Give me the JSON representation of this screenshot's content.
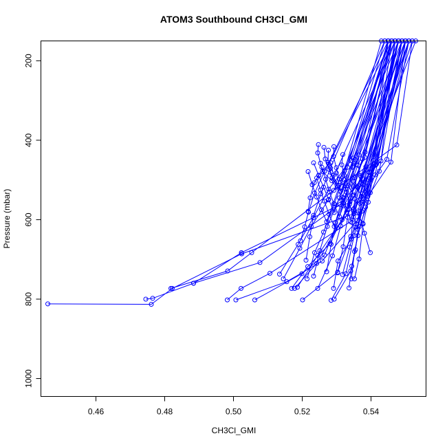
{
  "chart_data": {
    "type": "line",
    "title": "ATOM3 Southbound CH3Cl_GMI",
    "xlabel": "CH3Cl_GMI",
    "ylabel": "Pressure (mbar)",
    "xlim": [
      0.444,
      0.556
    ],
    "ylim": [
      1045,
      150
    ],
    "y_reversed": true,
    "x_ticks": [
      0.46,
      0.48,
      0.5,
      0.52,
      0.54
    ],
    "x_tick_labels": [
      "0.46",
      "0.48",
      "0.50",
      "0.52",
      "0.54"
    ],
    "y_ticks": [
      200,
      400,
      600,
      800,
      1000
    ],
    "y_tick_labels": [
      "200",
      "400",
      "600",
      "800",
      "1000"
    ],
    "grid": false,
    "series_color": "#0000ff",
    "marker": "open-circle",
    "profiles": [
      {
        "x": [
          0.446,
          0.4761,
          0.4822,
          0.5024,
          0.535,
          0.551
        ],
        "y": [
          812,
          813,
          773,
          686,
          585,
          150
        ]
      },
      {
        "x": [
          0.4745,
          0.4765,
          0.4884,
          0.5023,
          0.532,
          0.55
        ],
        "y": [
          800,
          798,
          760,
          683,
          558,
          150
        ]
      },
      {
        "x": [
          0.4818,
          0.4983,
          0.5053,
          0.5292,
          0.5475,
          0.552
        ],
        "y": [
          773,
          729,
          683,
          526,
          412,
          150
        ]
      },
      {
        "x": [
          0.4884,
          0.5077,
          0.531,
          0.5375,
          0.553
        ],
        "y": [
          760,
          708,
          562,
          496,
          150
        ]
      },
      {
        "x": [
          0.4982,
          0.5022,
          0.5106,
          0.534,
          0.548
        ],
        "y": [
          802,
          773,
          735,
          605,
          150
        ]
      },
      {
        "x": [
          0.5007,
          0.5155,
          0.5258,
          0.536,
          0.5412,
          0.549
        ],
        "y": [
          802,
          756,
          704,
          602,
          487,
          150
        ]
      },
      {
        "x": [
          0.5062,
          0.5199,
          0.5265,
          0.532,
          0.5387,
          0.548
        ],
        "y": [
          802,
          736,
          689,
          565,
          475,
          150
        ]
      },
      {
        "x": [
          0.5201,
          0.5303,
          0.5341,
          0.5391,
          0.5458,
          0.55
        ],
        "y": [
          802,
          732,
          642,
          541,
          455,
          150
        ]
      },
      {
        "x": [
          0.5169,
          0.5216,
          0.5281,
          0.5339,
          0.5416,
          0.549
        ],
        "y": [
          773,
          718,
          660,
          555,
          460,
          150
        ]
      },
      {
        "x": [
          0.5178,
          0.5242,
          0.5302,
          0.5361,
          0.5446,
          0.551
        ],
        "y": [
          773,
          710,
          620,
          552,
          448,
          150
        ]
      },
      {
        "x": [
          0.5186,
          0.5245,
          0.5316,
          0.5372,
          0.5429,
          0.547
        ],
        "y": [
          770,
          690,
          600,
          508,
          452,
          150
        ]
      },
      {
        "x": [
          0.5284,
          0.5327,
          0.5351,
          0.5373,
          0.5402,
          0.548
        ],
        "y": [
          803,
          736,
          640,
          579,
          470,
          150
        ]
      },
      {
        "x": [
          0.5293,
          0.5341,
          0.5355,
          0.5371,
          0.5397,
          0.547
        ],
        "y": [
          800,
          729,
          676,
          556,
          496,
          150
        ]
      },
      {
        "x": [
          0.5245,
          0.5288,
          0.5312,
          0.534,
          0.5383,
          0.546
        ],
        "y": [
          773,
          691,
          616,
          546,
          430,
          150
        ]
      },
      {
        "x": [
          0.5291,
          0.5304,
          0.5342,
          0.5349,
          0.5395,
          0.548
        ],
        "y": [
          773,
          704,
          649,
          578,
          481,
          150
        ]
      },
      {
        "x": [
          0.5317,
          0.5338,
          0.5354,
          0.5379,
          0.5417,
          0.55
        ],
        "y": [
          738,
          669,
          619,
          547,
          455,
          150
        ]
      },
      {
        "x": [
          0.5336,
          0.5344,
          0.5362,
          0.5384,
          0.5424,
          0.549
        ],
        "y": [
          772,
          717,
          640,
          568,
          478,
          150
        ]
      },
      {
        "x": [
          0.5343,
          0.5352,
          0.5367,
          0.5392,
          0.545
        ],
        "y": [
          749,
          680,
          617,
          556,
          150
        ]
      },
      {
        "x": [
          0.5352,
          0.5365,
          0.5377,
          0.5398,
          0.546
        ],
        "y": [
          749,
          699,
          611,
          532,
          150
        ]
      },
      {
        "x": [
          0.5398,
          0.5381,
          0.5363,
          0.5372,
          0.5413,
          0.547
        ],
        "y": [
          683,
          634,
          578,
          541,
          463,
          150
        ]
      },
      {
        "x": [
          0.5376,
          0.5359,
          0.5331,
          0.5348,
          0.5382,
          0.546
        ],
        "y": [
          609,
          583,
          565,
          503,
          443,
          150
        ]
      },
      {
        "x": [
          0.5303,
          0.5319,
          0.5332,
          0.5348,
          0.5375,
          0.545
        ],
        "y": [
          734,
          668,
          594,
          516,
          447,
          150
        ]
      },
      {
        "x": [
          0.5271,
          0.5284,
          0.5297,
          0.5322,
          0.5357,
          0.546
        ],
        "y": [
          731,
          662,
          608,
          547,
          462,
          150
        ]
      },
      {
        "x": [
          0.5233,
          0.5251,
          0.5273,
          0.5308,
          0.5354,
          0.545
        ],
        "y": [
          742,
          678,
          617,
          545,
          449,
          150
        ]
      },
      {
        "x": [
          0.5214,
          0.5236,
          0.5262,
          0.5293,
          0.5332,
          0.544
        ],
        "y": [
          749,
          683,
          631,
          560,
          468,
          150
        ]
      },
      {
        "x": [
          0.5145,
          0.5193,
          0.5226,
          0.5276,
          0.5323,
          0.543
        ],
        "y": [
          749,
          672,
          617,
          550,
          477,
          150
        ]
      },
      {
        "x": [
          0.5134,
          0.5188,
          0.5232,
          0.5277,
          0.5342,
          0.545
        ],
        "y": [
          737,
          662,
          595,
          523,
          451,
          150
        ]
      },
      {
        "x": [
          0.5211,
          0.5222,
          0.5233,
          0.5254,
          0.5282,
          0.544
        ],
        "y": [
          702,
          643,
          589,
          535,
          470,
          150
        ]
      },
      {
        "x": [
          0.5195,
          0.5207,
          0.5218,
          0.5236,
          0.5265,
          0.545
        ],
        "y": [
          653,
          618,
          581,
          533,
          478,
          150
        ]
      },
      {
        "x": [
          0.5217,
          0.5223,
          0.5235,
          0.5248,
          0.5277,
          0.546
        ],
        "y": [
          579,
          545,
          507,
          488,
          460,
          150
        ]
      },
      {
        "x": [
          0.5247,
          0.5245,
          0.5253,
          0.5259,
          0.5286,
          0.547
        ],
        "y": [
          411,
          432,
          458,
          479,
          502,
          150
        ]
      },
      {
        "x": [
          0.5263,
          0.5267,
          0.5278,
          0.5287,
          0.5301,
          0.548
        ],
        "y": [
          418,
          447,
          473,
          494,
          514,
          150
        ]
      },
      {
        "x": [
          0.5276,
          0.5275,
          0.5283,
          0.5294,
          0.5312,
          0.549
        ],
        "y": [
          425,
          456,
          481,
          505,
          528,
          150
        ]
      },
      {
        "x": [
          0.5292,
          0.5291,
          0.5299,
          0.5308,
          0.5326,
          0.55
        ],
        "y": [
          416,
          441,
          469,
          498,
          523,
          150
        ]
      },
      {
        "x": [
          0.5318,
          0.5315,
          0.5322,
          0.5333,
          0.5351,
          0.551
        ],
        "y": [
          436,
          462,
          488,
          514,
          538,
          150
        ]
      },
      {
        "x": [
          0.5348,
          0.5346,
          0.5351,
          0.5359,
          0.5372,
          0.552
        ],
        "y": [
          445,
          468,
          494,
          517,
          542,
          150
        ]
      },
      {
        "x": [
          0.5365,
          0.5362,
          0.5369,
          0.5377,
          0.5389,
          0.551
        ],
        "y": [
          437,
          463,
          489,
          512,
          534,
          150
        ]
      },
      {
        "x": [
          0.5407,
          0.5394,
          0.5386,
          0.5375,
          0.5368,
          0.55
        ],
        "y": [
          451,
          481,
          507,
          535,
          559,
          150
        ]
      },
      {
        "x": [
          0.5385,
          0.5371,
          0.5362,
          0.5353,
          0.5349,
          0.549
        ],
        "y": [
          467,
          492,
          519,
          548,
          574,
          150
        ]
      },
      {
        "x": [
          0.5233,
          0.5248,
          0.5262,
          0.5277,
          0.5293,
          0.547
        ],
        "y": [
          457,
          489,
          518,
          549,
          582,
          150
        ]
      },
      {
        "x": [
          0.5217,
          0.5229,
          0.5242,
          0.5256,
          0.5271,
          0.546
        ],
        "y": [
          479,
          512,
          543,
          575,
          605,
          150
        ]
      },
      {
        "x": [
          0.5242,
          0.5253,
          0.5264,
          0.5278,
          0.5293,
          0.545
        ],
        "y": [
          495,
          525,
          553,
          586,
          617,
          150
        ]
      },
      {
        "x": [
          0.5257,
          0.5268,
          0.5279,
          0.5292,
          0.5308,
          0.546
        ],
        "y": [
          468,
          498,
          530,
          560,
          592,
          150
        ]
      },
      {
        "x": [
          0.5283,
          0.5291,
          0.5302,
          0.5315,
          0.5329,
          0.548
        ],
        "y": [
          457,
          488,
          518,
          550,
          581,
          150
        ]
      },
      {
        "x": [
          0.5299,
          0.5307,
          0.5318,
          0.5331,
          0.5345,
          0.549
        ],
        "y": [
          482,
          513,
          544,
          575,
          607,
          150
        ]
      },
      {
        "x": [
          0.5322,
          0.5329,
          0.5338,
          0.5349,
          0.5361,
          0.55
        ],
        "y": [
          500,
          531,
          561,
          593,
          624,
          150
        ]
      }
    ]
  }
}
